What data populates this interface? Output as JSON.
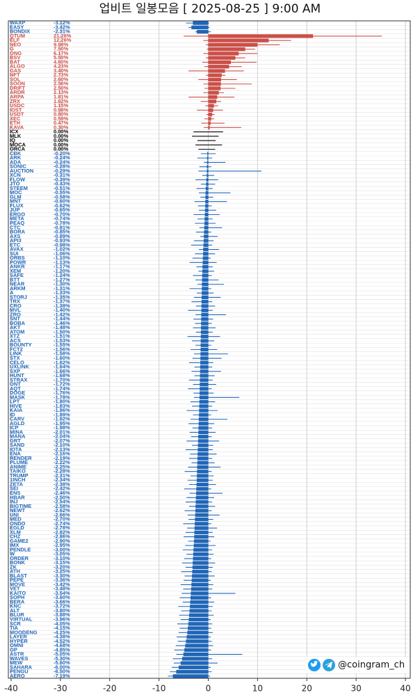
{
  "chart_data": {
    "type": "range_bar",
    "title": "업비트 일봉모음 [ 2025-08-25 ]  9:00 AM",
    "watermark": "@coingram_ch",
    "categories": [
      "WAXP",
      "EASY",
      "BONDIX",
      "QTUM",
      "ELF",
      "NEO",
      "G",
      "ONG",
      "BSV",
      "BAT",
      "ALGO",
      "GAS",
      "NFT",
      "SOL",
      "SOON",
      "DRIFT",
      "ARDR",
      "ARPA",
      "ZRX",
      "USDC",
      "IOST",
      "USDT",
      "XEC",
      "ETH",
      "KAVA",
      "ICX",
      "MLK",
      "IQ",
      "MOCA",
      "ORCA",
      "CBK",
      "ARK",
      "ADA",
      "SONIC",
      "AUCTION",
      "XCN",
      "FLOW",
      "JTO",
      "STEEM",
      "MOC",
      "GLM",
      "MNT",
      "FLUX",
      "JUP",
      "ERGO",
      "META",
      "PEAQ",
      "CTC",
      "BORA",
      "AXS",
      "API3",
      "ETC",
      "AVAX",
      "SUI",
      "ORBS",
      "POWR",
      "ANKR",
      "XEM",
      "SAFE",
      "BTT",
      "NEAR",
      "ARKM",
      "A",
      "STORJ",
      "TRX",
      "CRO",
      "MVL",
      "ZRO",
      "SNT",
      "BOBA",
      "AKT",
      "ATOM",
      "XTZ",
      "ACS",
      "BOUNTY",
      "FCT2",
      "LINK",
      "STX",
      "CELO",
      "UXLINK",
      "SXP",
      "HUNT",
      "STRAX",
      "ONT",
      "AQT",
      "DOGE",
      "MASK",
      "LPT",
      "HIVE",
      "KAIA",
      "ID",
      "CARV",
      "AGLD",
      "ICP",
      "MINA",
      "MANA",
      "GRT",
      "SAND",
      "IOTA",
      "ENA",
      "RENDER",
      "PLUME",
      "ANIME",
      "TAIKO",
      "TRUMP",
      "1INCH",
      "ZETA",
      "SEI",
      "ENS",
      "HBAR",
      "INJ",
      "BIGTIME",
      "NEWT",
      "UNI",
      "MED",
      "ONDO",
      "EGLD",
      "XLM",
      "CHZ",
      "GAME2",
      "IMX",
      "PENDLE",
      "W",
      "ORDER",
      "BONK",
      "ZK",
      "ATH",
      "BLAST",
      "PEPE",
      "MOVE",
      "VET",
      "KAITO",
      "SOPH",
      "BERA",
      "KNC",
      "ALT",
      "BLUR",
      "VIRTUAL",
      "SCR",
      "TIA",
      "MOODENG",
      "LAYER",
      "HYPER",
      "OMNI",
      "OP",
      "ASTR",
      "WAVES",
      "MEW",
      "SAHARA",
      "PENGU",
      "AERO"
    ],
    "values": [
      -3.12,
      -3.42,
      -2.31,
      21.26,
      12.26,
      9.98,
      7.5,
      6.17,
      5.5,
      4.6,
      4.23,
      3.4,
      2.73,
      2.6,
      2.56,
      2.5,
      2.13,
      1.81,
      1.62,
      1.15,
      0.98,
      0.8,
      0.59,
      0.47,
      0.3,
      0,
      0,
      0,
      0,
      0,
      -0.2,
      -0.24,
      -0.24,
      -0.28,
      -0.29,
      -0.31,
      -0.39,
      -0.43,
      -0.51,
      -0.55,
      -0.58,
      -0.6,
      -0.62,
      -0.65,
      -0.7,
      -0.74,
      -0.78,
      -0.81,
      -0.85,
      -0.89,
      -0.93,
      -0.98,
      -1.02,
      -1.06,
      -1.1,
      -1.13,
      -1.17,
      -1.2,
      -1.24,
      -1.27,
      -1.3,
      -1.31,
      -1.33,
      -1.35,
      -1.37,
      -1.38,
      -1.4,
      -1.42,
      -1.44,
      -1.46,
      -1.48,
      -1.5,
      -1.51,
      -1.53,
      -1.55,
      -1.56,
      -1.58,
      -1.6,
      -1.62,
      -1.64,
      -1.66,
      -1.68,
      -1.7,
      -1.72,
      -1.74,
      -1.76,
      -1.78,
      -1.8,
      -1.83,
      -1.86,
      -1.89,
      -1.92,
      -1.95,
      -1.98,
      -2.01,
      -2.04,
      -2.07,
      -2.1,
      -2.13,
      -2.16,
      -2.19,
      -2.22,
      -2.25,
      -2.28,
      -2.31,
      -2.34,
      -2.38,
      -2.42,
      -2.46,
      -2.5,
      -2.54,
      -2.58,
      -2.62,
      -2.66,
      -2.7,
      -2.74,
      -2.78,
      -2.82,
      -2.86,
      -2.9,
      -2.95,
      -3,
      -3.05,
      -3.1,
      -3.15,
      -3.2,
      -3.25,
      -3.3,
      -3.36,
      -3.42,
      -3.48,
      -3.54,
      -3.6,
      -3.66,
      -3.72,
      -3.8,
      -3.88,
      -3.96,
      -4.05,
      -4.15,
      -4.25,
      -4.38,
      -4.52,
      -4.68,
      -4.85,
      -5.05,
      -5.3,
      -5.6,
      -6,
      -6.5,
      -7.19
    ],
    "value_labels": [
      "-3.12%",
      "-3.42%",
      "-2.31%",
      "21.26%",
      "12.26%",
      "9.98%",
      "7.50%",
      "6.17%",
      "5.50%",
      "4.60%",
      "4.23%",
      "3.40%",
      "2.73%",
      "2.60%",
      "2.56%",
      "2.50%",
      "2.13%",
      "1.81%",
      "1.62%",
      "1.15%",
      "0.98%",
      "0.80%",
      "0.59%",
      "0.47%",
      "0.30%",
      "0.00%",
      "0.00%",
      "0.00%",
      "0.00%",
      "0.00%",
      "-0.20%",
      "-0.24%",
      "-0.24%",
      "-0.28%",
      "-0.29%",
      "-0.31%",
      "-0.39%",
      "-0.43%",
      "-0.51%",
      "-0.55%",
      "-0.58%",
      "-0.60%",
      "-0.62%",
      "-0.65%",
      "-0.70%",
      "-0.74%",
      "-0.78%",
      "-0.81%",
      "-0.85%",
      "-0.89%",
      "-0.93%",
      "-0.98%",
      "-1.02%",
      "-1.06%",
      "-1.10%",
      "-1.13%",
      "-1.17%",
      "-1.20%",
      "-1.24%",
      "-1.27%",
      "-1.30%",
      "-1.31%",
      "-1.33%",
      "-1.35%",
      "-1.37%",
      "-1.38%",
      "-1.40%",
      "-1.42%",
      "-1.44%",
      "-1.46%",
      "-1.48%",
      "-1.50%",
      "-1.51%",
      "-1.53%",
      "-1.55%",
      "-1.56%",
      "-1.58%",
      "-1.60%",
      "-1.62%",
      "-1.64%",
      "-1.66%",
      "-1.68%",
      "-1.70%",
      "-1.72%",
      "-1.74%",
      "-1.76%",
      "-1.78%",
      "-1.80%",
      "-1.83%",
      "-1.86%",
      "-1.89%",
      "-1.92%",
      "-1.95%",
      "-1.98%",
      "-2.01%",
      "-2.04%",
      "-2.07%",
      "-2.10%",
      "-2.13%",
      "-2.16%",
      "-2.19%",
      "-2.22%",
      "-2.25%",
      "-2.28%",
      "-2.31%",
      "-2.34%",
      "-2.38%",
      "-2.42%",
      "-2.46%",
      "-2.50%",
      "-2.54%",
      "-2.58%",
      "-2.62%",
      "-2.66%",
      "-2.70%",
      "-2.74%",
      "-2.78%",
      "-2.82%",
      "-2.86%",
      "-2.90%",
      "-2.95%",
      "-3.00%",
      "-3.05%",
      "-3.10%",
      "-3.15%",
      "-3.20%",
      "-3.25%",
      "-3.30%",
      "-3.36%",
      "-3.42%",
      "-3.48%",
      "-3.54%",
      "-3.60%",
      "-3.66%",
      "-3.72%",
      "-3.80%",
      "-3.88%",
      "-3.96%",
      "-4.05%",
      "-4.15%",
      "-4.25%",
      "-4.38%",
      "-4.52%",
      "-4.68%",
      "-4.85%",
      "-5.05%",
      "-5.30%",
      "-5.60%",
      "-6.00%",
      "-6.50%",
      "-7.19%"
    ],
    "low": [
      -4.5,
      -4,
      -2.6,
      -5,
      -1,
      -0.5,
      -0.3,
      -1,
      -0.5,
      -1.2,
      -0.8,
      -4,
      -0.5,
      -2,
      -1,
      -0.8,
      -1,
      -4,
      -1.5,
      -0.6,
      -2.3,
      -0.4,
      -0.8,
      -1.4,
      -0.9,
      -3,
      -3.3,
      -2.2,
      -2.6,
      -2,
      -1.5,
      -2.2,
      -0.9,
      -1.8,
      -2,
      -1.2,
      -2.6,
      -1.5,
      -2.4,
      -1.9,
      -1.6,
      -2.8,
      -2.1,
      -1.9,
      -3,
      -2.2,
      -2.7,
      -1.8,
      -2.5,
      -1.6,
      -2.9,
      -3.5,
      -1.9,
      -2.7,
      -3.2,
      -3.8,
      -2.4,
      -2,
      -3.1,
      -2.6,
      -2.2,
      -3.8,
      -2.3,
      -2.9,
      -3.4,
      -2.5,
      -4.1,
      -2.6,
      -3,
      -2.7,
      -3.1,
      -2.5,
      -4.2,
      -3.3,
      -2.6,
      -3.6,
      -2.9,
      -3.2,
      -3.9,
      -2.8,
      -3.4,
      -2.8,
      -3.9,
      -3.1,
      -4.1,
      -3,
      -2.9,
      -3.6,
      -3.3,
      -4.4,
      -3.1,
      -3.6,
      -4,
      -3.2,
      -3.8,
      -3.5,
      -4.4,
      -3.3,
      -4.6,
      -3.7,
      -3.9,
      -3.4,
      -4.1,
      -4.8,
      -3.6,
      -4.2,
      -3.9,
      -4.9,
      -3.8,
      -4.4,
      -4.6,
      -3.9,
      -4.8,
      -4.2,
      -4,
      -5.1,
      -4.3,
      -4.6,
      -5,
      -4.1,
      -4.7,
      -5.2,
      -4.4,
      -4.9,
      -5.3,
      -4.6,
      -5.5,
      -4.8,
      -5,
      -5.6,
      -5.1,
      -5.4,
      -5.8,
      -5.2,
      -6.1,
      -5.5,
      -5.9,
      -5.6,
      -6.3,
      -5.8,
      -6,
      -6.4,
      -6.2,
      -6.6,
      -6.9,
      -6.5,
      -7.2,
      -7,
      -7.4,
      -7.8,
      -8.2
    ],
    "high": [
      0.2,
      0.3,
      0.5,
      35.2,
      16.8,
      14.5,
      9.5,
      10,
      7.5,
      9.8,
      6.8,
      7.2,
      3.5,
      5.8,
      8.8,
      5.5,
      3.2,
      5.3,
      2.6,
      2,
      3,
      1.3,
      1.2,
      3.3,
      6.7,
      3,
      2.1,
      1.5,
      2.8,
      1.4,
      1.5,
      0.8,
      3.5,
      0.6,
      10.8,
      1.2,
      2,
      1.4,
      0.9,
      4.5,
      1,
      3.8,
      0.7,
      1.6,
      2.3,
      0.9,
      1.5,
      2.8,
      0.6,
      1.9,
      1.1,
      0.8,
      2.2,
      1.4,
      0.5,
      1.7,
      0.9,
      1.2,
      0.7,
      2.1,
      3.2,
      0.6,
      1.1,
      2.5,
      0.8,
      1.4,
      0.9,
      3.6,
      1,
      0.7,
      1.5,
      0.9,
      2.4,
      1.2,
      0.6,
      1.8,
      4,
      2.7,
      1,
      0.8,
      2.6,
      1.3,
      0.9,
      1.6,
      0.7,
      1.1,
      6.3,
      1.4,
      0.8,
      1.9,
      0.6,
      3.9,
      1.2,
      0.8,
      1.5,
      0.7,
      2.2,
      1,
      0.9,
      1.7,
      0.8,
      1.3,
      2.5,
      0.7,
      1.1,
      0.9,
      1.6,
      0.6,
      2.9,
      1.2,
      0.8,
      1.4,
      0.7,
      2.3,
      1,
      0.6,
      1.8,
      0.9,
      1.2,
      0.5,
      1.5,
      0.8,
      1.1,
      0.6,
      1.4,
      0.9,
      0.7,
      1.3,
      0.5,
      1,
      0.8,
      5.5,
      0.6,
      1.2,
      0.9,
      0.7,
      1.1,
      0.5,
      0.8,
      0.6,
      0.9,
      0.5,
      0.7,
      1,
      0.6,
      6.9,
      0.8,
      1.9,
      0.5,
      0.7,
      0.4
    ],
    "xlim": [
      -40,
      40
    ],
    "xticks": [
      -40,
      -30,
      -20,
      -10,
      0,
      10,
      20,
      30,
      40
    ],
    "grid": true,
    "up_color": "#cc4f47",
    "down_color": "#1f66b8",
    "flat_color": "#000000"
  }
}
